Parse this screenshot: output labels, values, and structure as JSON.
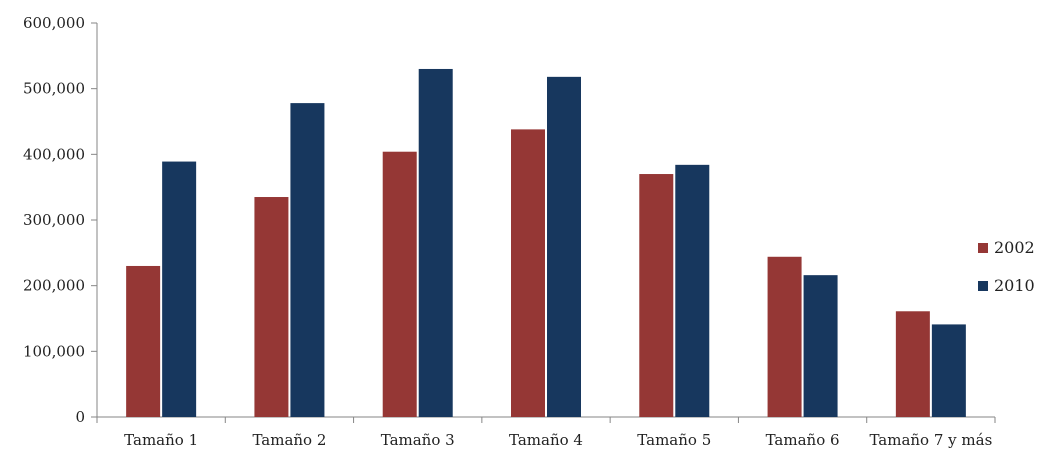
{
  "chart_data": {
    "type": "bar",
    "categories": [
      "Tamaño 1",
      "Tamaño 2",
      "Tamaño 3",
      "Tamaño 4",
      "Tamaño 5",
      "Tamaño 6",
      "Tamaño 7 y más"
    ],
    "series": [
      {
        "name": "2002",
        "color": "#953735",
        "values": [
          230000,
          335000,
          404000,
          438000,
          370000,
          244000,
          161000
        ]
      },
      {
        "name": "2010",
        "color": "#17375E",
        "values": [
          389000,
          478000,
          530000,
          518000,
          384000,
          216000,
          141000
        ]
      }
    ],
    "ylim": [
      0,
      600000
    ],
    "yticks": [
      0,
      100000,
      200000,
      300000,
      400000,
      500000,
      600000
    ],
    "ytick_labels": [
      "0",
      "100,000",
      "200,000",
      "300,000",
      "400,000",
      "500,000",
      "600,000"
    ],
    "grid": false,
    "legend_position": "right",
    "title": "",
    "xlabel": "",
    "ylabel": ""
  }
}
